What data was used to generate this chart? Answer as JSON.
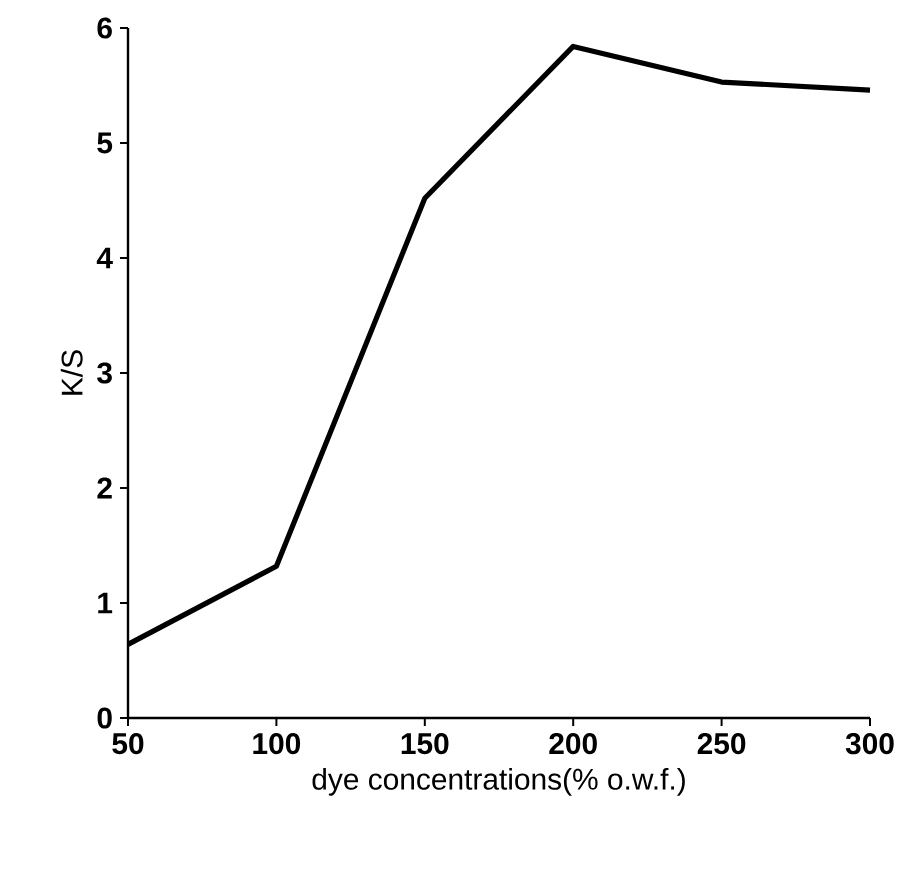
{
  "chart_data": {
    "type": "line",
    "xlabel": "dye concentrations(% o.w.f.)",
    "ylabel": "K/S",
    "x": [
      50,
      100,
      150,
      200,
      250,
      300
    ],
    "values": [
      0.64,
      1.32,
      4.52,
      5.84,
      5.53,
      5.46
    ],
    "color": "#000000",
    "marker": "none",
    "line_style": "solid",
    "grid": false,
    "xlim": [
      50,
      300
    ],
    "xticks": [
      50,
      100,
      150,
      200,
      250,
      300
    ],
    "ylim": [
      0,
      6
    ],
    "yticks": [
      0,
      1,
      2,
      3,
      4,
      5,
      6
    ]
  }
}
